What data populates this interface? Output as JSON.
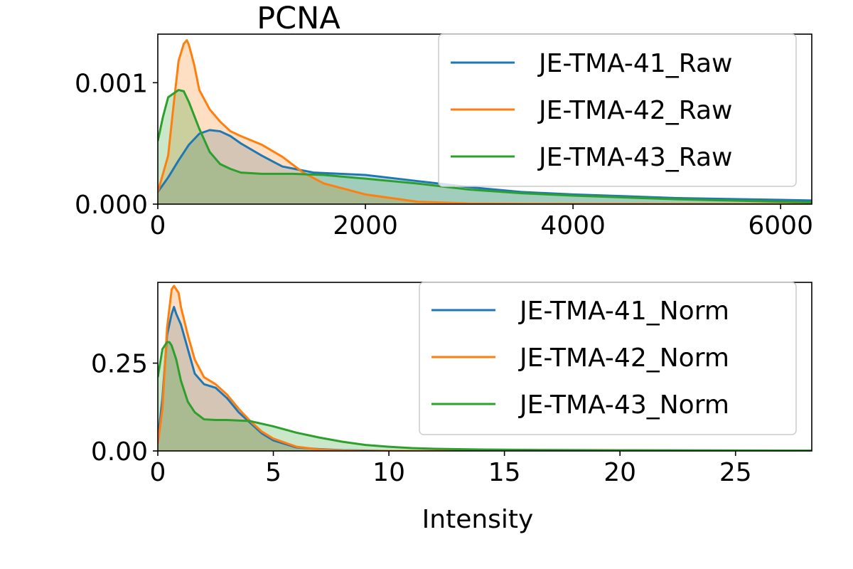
{
  "chart_data": [
    {
      "type": "area",
      "title": "PCNA",
      "xlabel": "",
      "ylabel": "",
      "xlim": [
        0,
        6300
      ],
      "ylim": [
        0,
        0.0014
      ],
      "xticks": [
        0,
        2000,
        4000,
        6000
      ],
      "xtick_labels": [
        "0",
        "2000",
        "4000",
        "6000"
      ],
      "yticks": [
        0,
        0.001
      ],
      "ytick_labels": [
        "0.000",
        "0.001"
      ],
      "legend_position": "top-right",
      "grid": false,
      "series": [
        {
          "name": "JE-TMA-41_Raw",
          "color": "#1f77b4",
          "x": [
            0,
            100,
            200,
            300,
            400,
            500,
            600,
            700,
            800,
            1000,
            1200,
            1500,
            2000,
            2500,
            3000,
            3500,
            4000,
            5000,
            6000,
            6300
          ],
          "y": [
            0.0001,
            0.00022,
            0.00036,
            0.00049,
            0.00058,
            0.00061,
            0.0006,
            0.00056,
            0.0005,
            0.0004,
            0.00031,
            0.00026,
            0.00024,
            0.00019,
            0.00014,
            0.0001,
            8e-05,
            5e-05,
            3.5e-05,
            3e-05
          ]
        },
        {
          "name": "JE-TMA-42_Raw",
          "color": "#ff7f0e",
          "x": [
            0,
            100,
            150,
            200,
            250,
            280,
            300,
            350,
            400,
            500,
            600,
            700,
            800,
            1000,
            1200,
            1400,
            1600,
            2000,
            2500,
            3000,
            3500,
            6300
          ],
          "y": [
            0.0001,
            0.0004,
            0.0008,
            0.00118,
            0.00132,
            0.00135,
            0.00131,
            0.00115,
            0.00094,
            0.00078,
            0.00068,
            0.0006,
            0.00056,
            0.00049,
            0.00039,
            0.00026,
            0.00017,
            8e-05,
            2e-05,
            5e-06,
            2e-06,
            0
          ]
        },
        {
          "name": "JE-TMA-43_Raw",
          "color": "#2ca02c",
          "x": [
            0,
            50,
            100,
            200,
            250,
            300,
            400,
            500,
            600,
            700,
            800,
            1000,
            1300,
            1600,
            2000,
            2500,
            3000,
            3500,
            4000,
            5000,
            6000,
            6300
          ],
          "y": [
            0.00052,
            0.00072,
            0.00088,
            0.00094,
            0.00093,
            0.00084,
            0.00062,
            0.00043,
            0.00033,
            0.00029,
            0.00026,
            0.00025,
            0.00025,
            0.00024,
            0.00021,
            0.00017,
            0.00012,
            9e-05,
            7e-05,
            4e-05,
            2e-05,
            1.5e-05
          ]
        }
      ]
    },
    {
      "type": "area",
      "title": "",
      "xlabel": "Intensity",
      "ylabel": "",
      "xlim": [
        0,
        28.3
      ],
      "ylim": [
        0,
        0.48
      ],
      "xticks": [
        0,
        5,
        10,
        15,
        20,
        25
      ],
      "xtick_labels": [
        "0",
        "5",
        "10",
        "15",
        "20",
        "25"
      ],
      "yticks": [
        0,
        0.25
      ],
      "ytick_labels": [
        "0.00",
        "0.25"
      ],
      "legend_position": "top-right",
      "grid": false,
      "series": [
        {
          "name": "JE-TMA-41_Norm",
          "color": "#1f77b4",
          "x": [
            0,
            0.2,
            0.4,
            0.6,
            0.7,
            0.8,
            1.0,
            1.3,
            1.6,
            2.0,
            2.5,
            3.0,
            3.5,
            4.0,
            4.5,
            5.0,
            6.0,
            7.0,
            8.0,
            9.0,
            10.0,
            28.3
          ],
          "y": [
            0.03,
            0.15,
            0.33,
            0.39,
            0.41,
            0.39,
            0.36,
            0.29,
            0.22,
            0.19,
            0.18,
            0.15,
            0.11,
            0.08,
            0.05,
            0.03,
            0.01,
            0.005,
            0.002,
            0.001,
            0,
            0
          ]
        },
        {
          "name": "JE-TMA-42_Norm",
          "color": "#ff7f0e",
          "x": [
            0,
            0.2,
            0.4,
            0.6,
            0.7,
            0.9,
            1.0,
            1.3,
            1.6,
            2.0,
            2.5,
            3.0,
            3.5,
            4.0,
            4.5,
            5.0,
            6.0,
            7.0,
            8.0,
            9.0,
            10.0,
            28.3
          ],
          "y": [
            0.02,
            0.12,
            0.35,
            0.46,
            0.47,
            0.45,
            0.41,
            0.33,
            0.26,
            0.21,
            0.19,
            0.16,
            0.12,
            0.085,
            0.055,
            0.035,
            0.012,
            0.004,
            0.001,
            0,
            0,
            0
          ]
        },
        {
          "name": "JE-TMA-43_Norm",
          "color": "#2ca02c",
          "x": [
            0,
            0.2,
            0.4,
            0.5,
            0.6,
            0.8,
            1.0,
            1.3,
            1.6,
            2.0,
            2.5,
            3.0,
            4.0,
            5.0,
            6.0,
            7.0,
            8.0,
            9.0,
            10.0,
            11.0,
            12.0,
            14.0,
            16.0,
            20.0,
            28.3
          ],
          "y": [
            0.21,
            0.29,
            0.31,
            0.31,
            0.3,
            0.26,
            0.2,
            0.14,
            0.11,
            0.09,
            0.088,
            0.088,
            0.085,
            0.07,
            0.052,
            0.038,
            0.026,
            0.017,
            0.012,
            0.008,
            0.006,
            0.004,
            0.003,
            0.002,
            0.001
          ]
        }
      ]
    }
  ]
}
